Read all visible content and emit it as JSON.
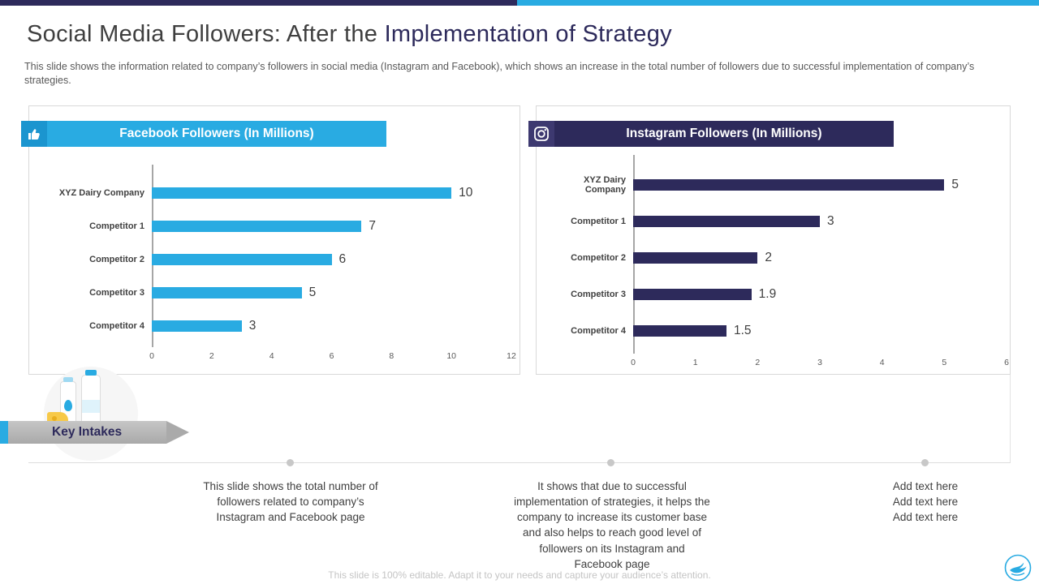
{
  "slide": {
    "title": {
      "primary": "Social Media Followers: After the ",
      "accent": "Implementation of Strategy"
    },
    "subtitle": "This slide shows the information related to company’s followers in social media (Instagram and Facebook), which shows an increase in the total number of followers due to successful implementation of company’s strategies.",
    "key_intakes_label": "Key Intakes",
    "notes": [
      {
        "text": "This slide shows the total number of followers related to company’s Instagram and Facebook page"
      },
      {
        "text": "It shows that due to successful implementation of strategies, it helps the company to increase its customer base and also helps to reach good level of followers on its Instagram and Facebook page"
      },
      {
        "text": "Add text here\nAdd text here\nAdd text here"
      }
    ],
    "footer": "This slide is 100% editable. Adapt it to your needs and capture your audience’s attention.",
    "colors": {
      "accent_cyan": "#29abe2",
      "accent_navy": "#2d2a5b",
      "bar_facebook": "#29abe2",
      "bar_instagram": "#2d2a5b"
    }
  },
  "chart_data": [
    {
      "type": "bar",
      "orientation": "horizontal",
      "title": "Facebook Followers (In Millions)",
      "categories": [
        "XYZ Dairy Company",
        "Competitor 1",
        "Competitor 2",
        "Competitor 3",
        "Competitor 4"
      ],
      "values": [
        10,
        7,
        6,
        5,
        3
      ],
      "value_labels": [
        "10",
        "7",
        "6",
        "5",
        "3"
      ],
      "xlim": [
        0,
        12
      ],
      "xticks": [
        0,
        2,
        4,
        6,
        8,
        10,
        12
      ],
      "bar_color": "#29abe2",
      "grid": false,
      "legend": "none"
    },
    {
      "type": "bar",
      "orientation": "horizontal",
      "title": "Instagram Followers (In Millions)",
      "categories": [
        "XYZ Dairy Company",
        "Competitor 1",
        "Competitor 2",
        "Competitor 3",
        "Competitor 4"
      ],
      "values": [
        5,
        3,
        2,
        1.9,
        1.5
      ],
      "value_labels": [
        "5",
        "3",
        "2",
        "1.9",
        "1.5"
      ],
      "xlim": [
        0,
        6
      ],
      "xticks": [
        0,
        1,
        2,
        3,
        4,
        5,
        6
      ],
      "bar_color": "#2d2a5b",
      "grid": false,
      "legend": "none"
    }
  ]
}
